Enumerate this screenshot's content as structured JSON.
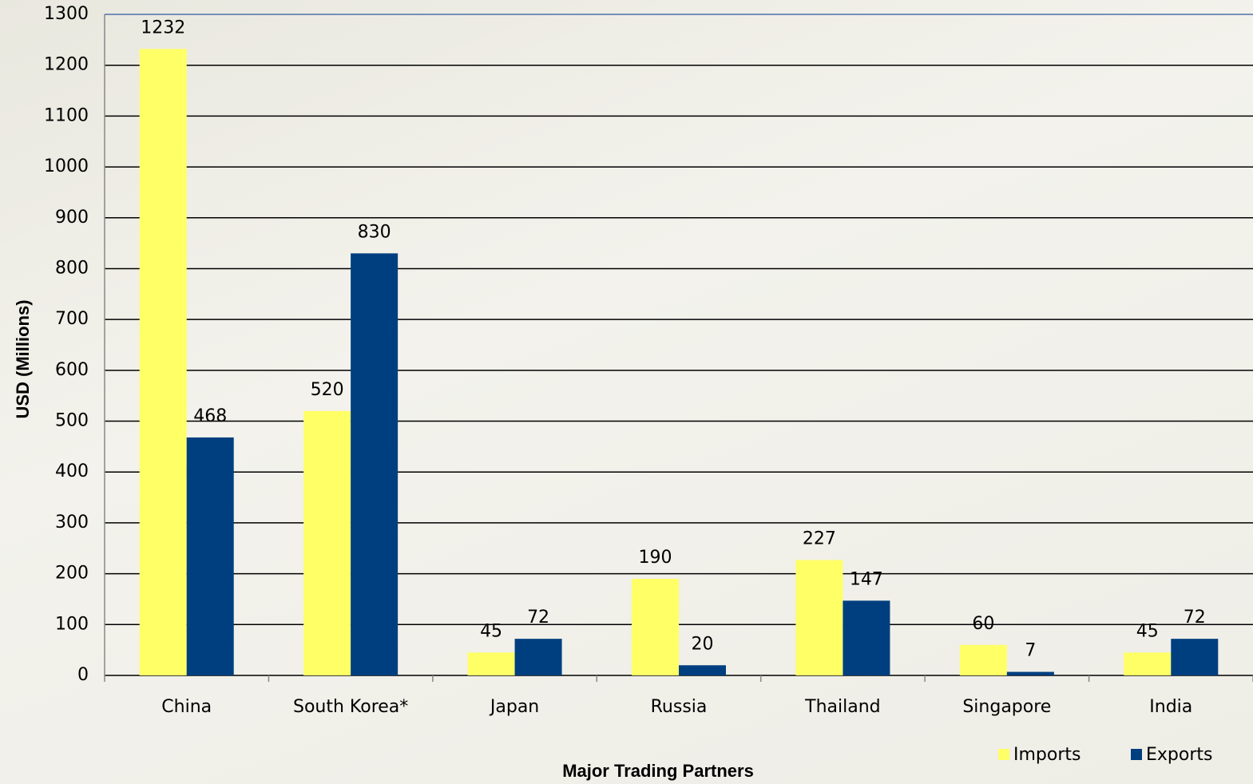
{
  "chart_data": {
    "type": "bar",
    "categories": [
      "China",
      "South Korea*",
      "Japan",
      "Russia",
      "Thailand",
      "Singapore",
      "India"
    ],
    "series": [
      {
        "name": "Imports",
        "color": "#ffff66",
        "values": [
          1232,
          520,
          45,
          190,
          227,
          60,
          45
        ]
      },
      {
        "name": "Exports",
        "color": "#003f7f",
        "values": [
          468,
          830,
          72,
          20,
          147,
          7,
          72
        ]
      }
    ],
    "xlabel": "Major Trading Partners",
    "ylabel": "USD (Millions)",
    "ylim": [
      0,
      1300
    ],
    "yticks": [
      0,
      100,
      200,
      300,
      400,
      500,
      600,
      700,
      800,
      900,
      1000,
      1100,
      1200,
      1300
    ],
    "grid": true,
    "legend": "bottom-right"
  }
}
